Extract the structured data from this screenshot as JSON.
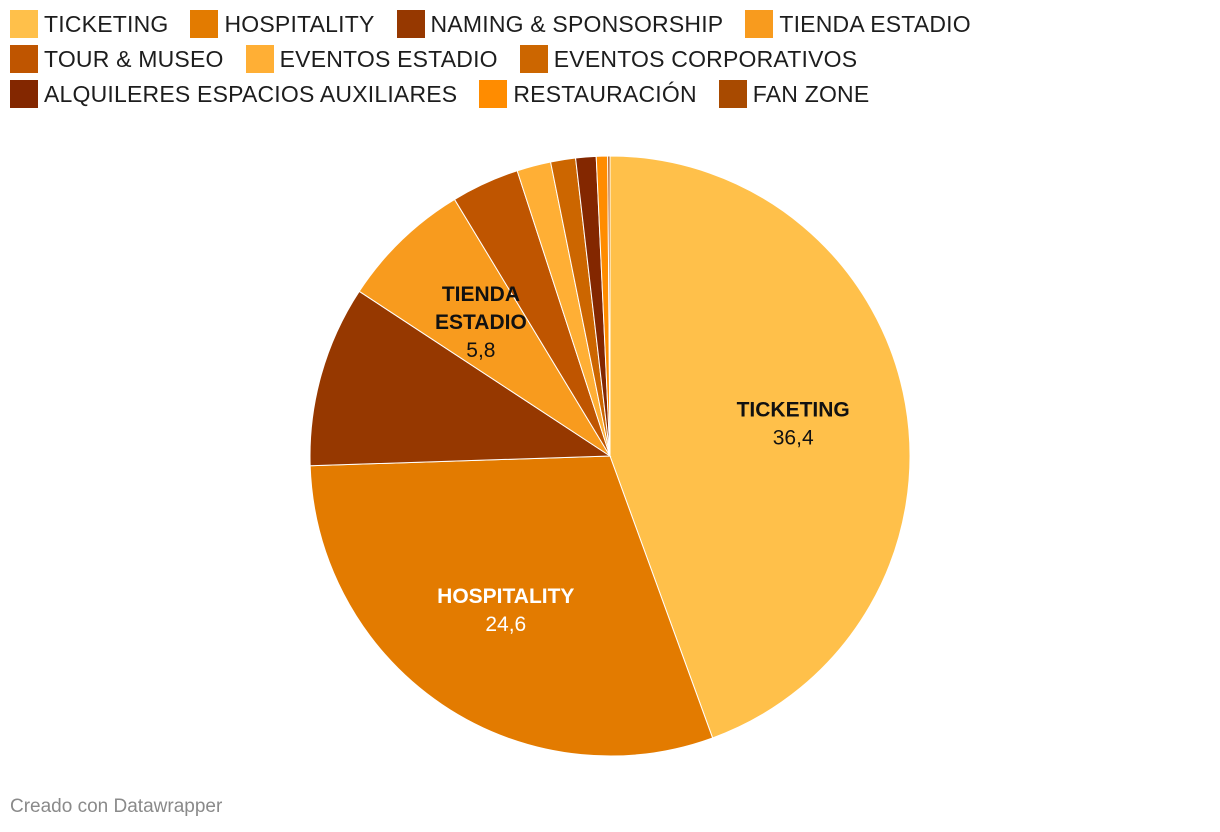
{
  "chart_data": {
    "type": "pie",
    "categories": [
      "TICKETING",
      "HOSPITALITY",
      "NAMING & SPONSORSHIP",
      "TIENDA ESTADIO",
      "TOUR & MUSEO",
      "EVENTOS ESTADIO",
      "EVENTOS CORPORATIVOS",
      "ALQUILERES ESPACIOS AUXILIARES",
      "RESTAURACIÓN",
      "FAN ZONE"
    ],
    "values": [
      36.4,
      24.6,
      8.0,
      5.8,
      3.0,
      1.5,
      1.1,
      0.9,
      0.5,
      0.1
    ],
    "colors": [
      "#ffc04a",
      "#e37b00",
      "#963800",
      "#f89b1e",
      "#bf5500",
      "#ffaf35",
      "#cc6600",
      "#832700",
      "#ff8c00",
      "#a84a00"
    ],
    "data_labels": [
      {
        "name_lines": [
          "TICKETING"
        ],
        "value": "36,4",
        "text_color": "#111111"
      },
      {
        "name_lines": [
          "HOSPITALITY"
        ],
        "value": "24,6",
        "text_color": "#ffffff"
      },
      null,
      {
        "name_lines": [
          "TIENDA",
          "ESTADIO"
        ],
        "value": "5,8",
        "text_color": "#111111"
      },
      null,
      null,
      null,
      null,
      null,
      null
    ],
    "start": "top",
    "direction": "clockwise",
    "legend_position": "top"
  },
  "footer": {
    "credit": "Creado con Datawrapper"
  }
}
